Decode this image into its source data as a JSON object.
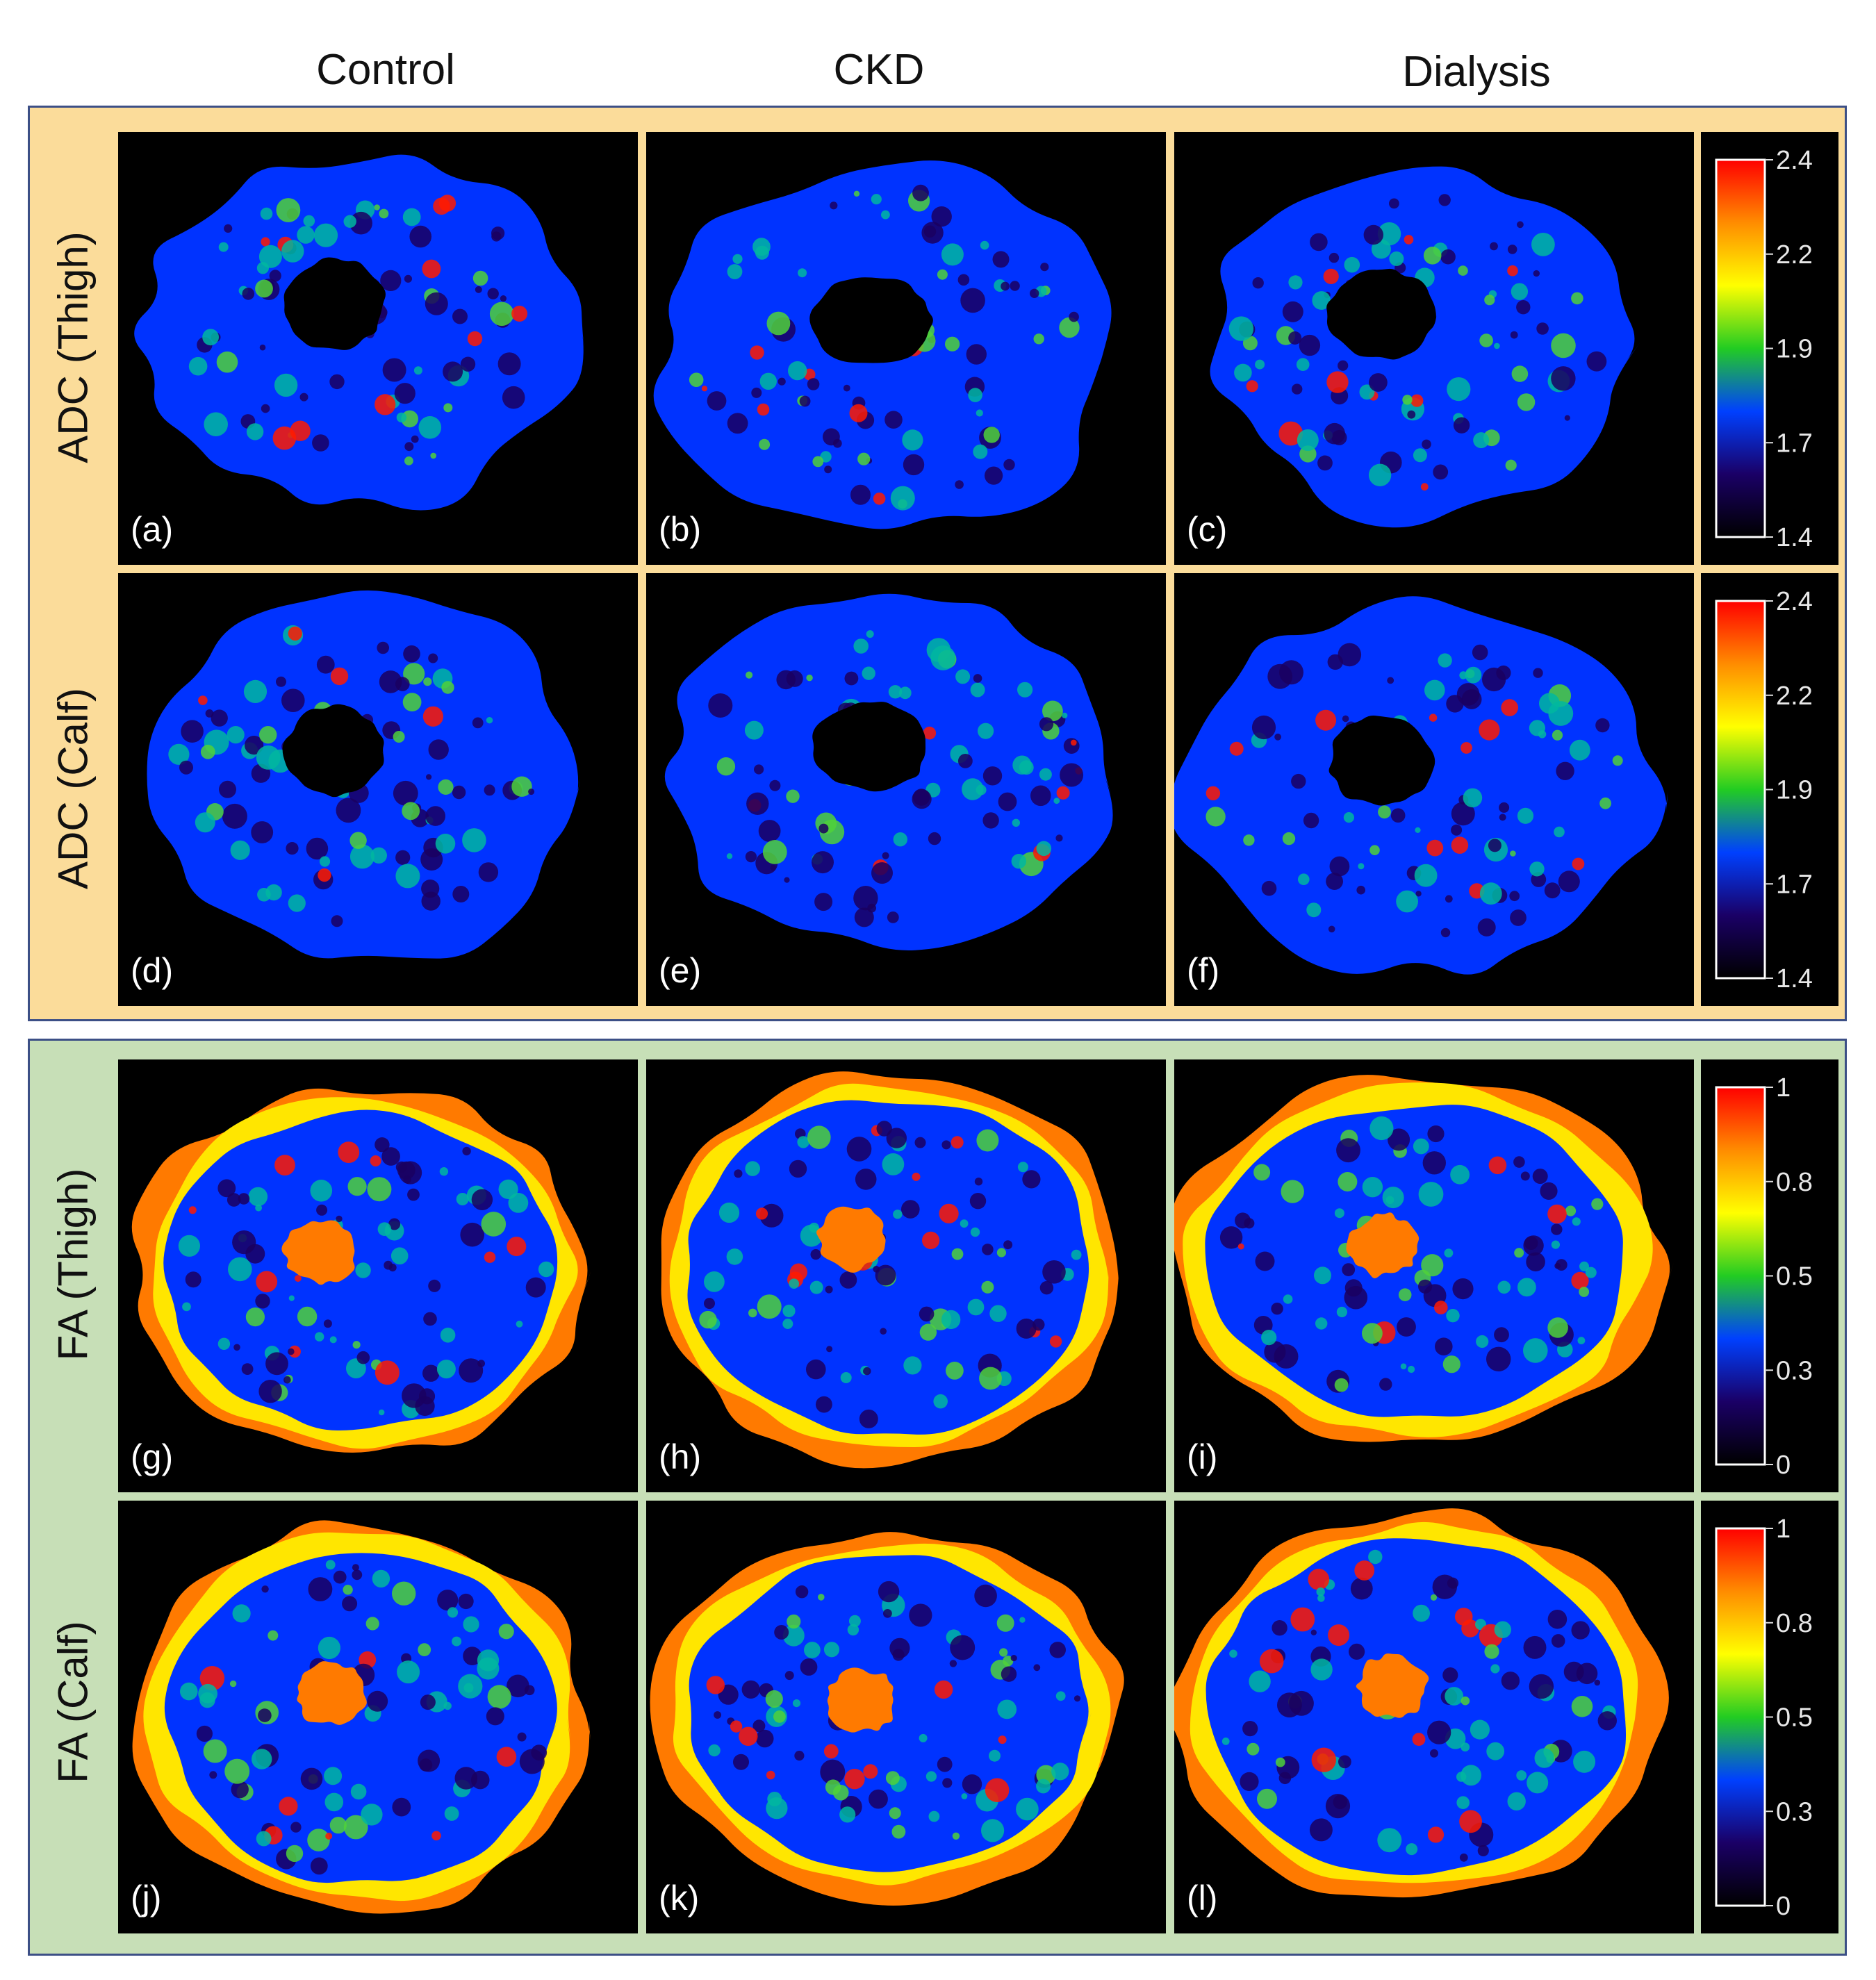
{
  "columns": [
    "Control",
    "CKD",
    "Dialysis"
  ],
  "rows": [
    {
      "label": "ADC (Thigh)",
      "kind": "adc",
      "panels": [
        "(a)",
        "(b)",
        "(c)"
      ]
    },
    {
      "label": "ADC (Calf)",
      "kind": "adc",
      "panels": [
        "(d)",
        "(e)",
        "(f)"
      ]
    },
    {
      "label": "FA (Thigh)",
      "kind": "fa",
      "panels": [
        "(g)",
        "(h)",
        "(i)"
      ]
    },
    {
      "label": "FA (Calf)",
      "kind": "fa",
      "panels": [
        "(j)",
        "(k)",
        "(l)"
      ]
    }
  ],
  "colorbars": {
    "adc": {
      "ticks": [
        "2.4",
        "2.2",
        "1.9",
        "1.7",
        "1.4"
      ]
    },
    "fa": {
      "ticks": [
        "1",
        "0.8",
        "0.5",
        "0.3",
        "0"
      ]
    }
  },
  "colors": {
    "adc_frame": "#fbdc9a",
    "fa_frame": "#c7dfb7",
    "frame_border": "#3c4f86",
    "map_stops": [
      "#ff1a00",
      "#ff7a00",
      "#ffe600",
      "#4fd13a",
      "#00b7a0",
      "#0033ff",
      "#1a0060",
      "#000000"
    ]
  }
}
